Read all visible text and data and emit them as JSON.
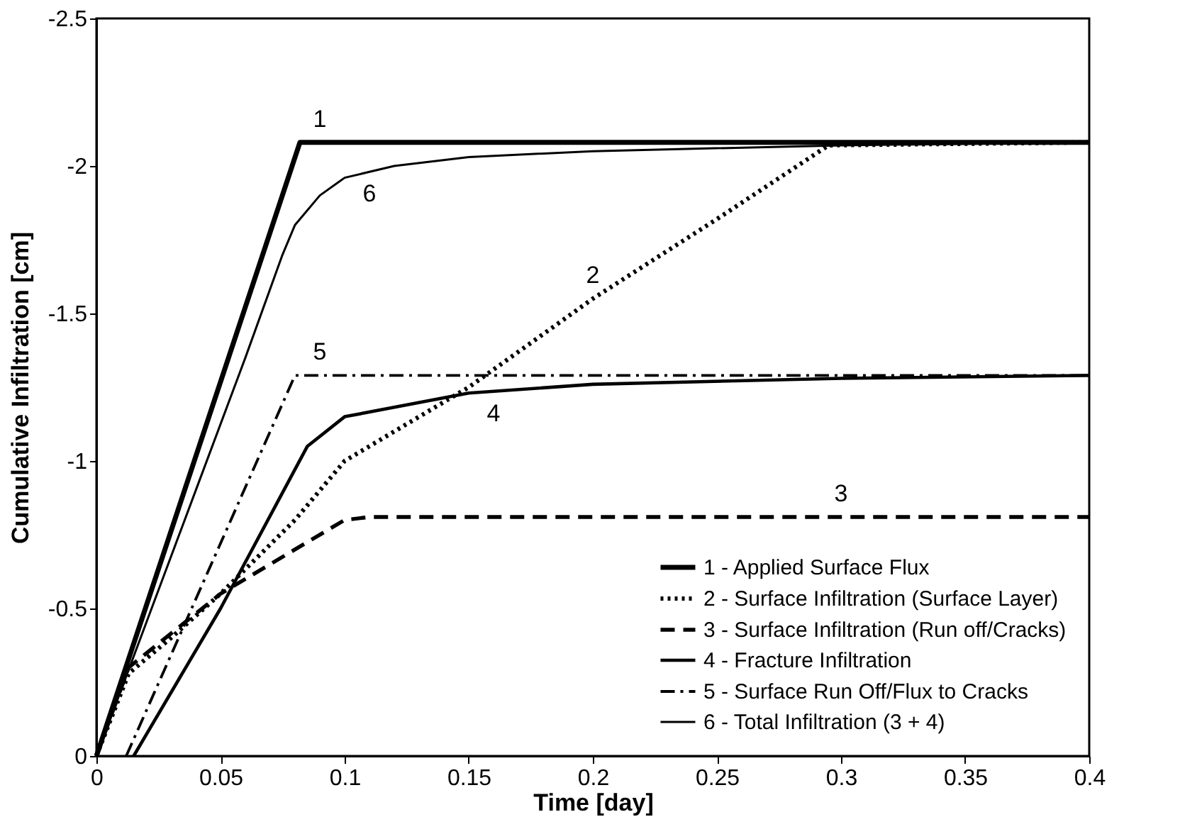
{
  "chart_data": {
    "type": "line",
    "xlabel": "Time [day]",
    "ylabel": "Cumulative Infiltration [cm]",
    "xlim": [
      0,
      0.4
    ],
    "xticks": [
      0,
      0.05,
      0.1,
      0.15,
      0.2,
      0.25,
      0.3,
      0.35,
      0.4
    ],
    "ylim": [
      0,
      -2.5
    ],
    "yticks": [
      0,
      -0.5,
      -1,
      -1.5,
      -2,
      -2.5
    ],
    "grid": false,
    "legend": "bottom right",
    "marker": "none",
    "series": [
      {
        "name": "1 - Applied Surface Flux",
        "color": "#000000",
        "line_style": "solid",
        "x": [
          0,
          0.082,
          0.4
        ],
        "values": [
          0,
          -2.08,
          -2.08
        ]
      },
      {
        "name": "2 - Surface Infiltration (Surface Layer)",
        "color": "#000000",
        "line_style": "dotted",
        "x": [
          0,
          0.013,
          0.03,
          0.05,
          0.08,
          0.1,
          0.15,
          0.2,
          0.25,
          0.295,
          0.4
        ],
        "values": [
          0,
          -0.28,
          -0.4,
          -0.55,
          -0.8,
          -1.0,
          -1.25,
          -1.55,
          -1.82,
          -2.07,
          -2.08
        ]
      },
      {
        "name": "3 - Surface Infiltration (Run off/Cracks)",
        "color": "#000000",
        "line_style": "dashed",
        "x": [
          0,
          0.013,
          0.05,
          0.1,
          0.11,
          0.4
        ],
        "values": [
          0,
          -0.3,
          -0.55,
          -0.8,
          -0.81,
          -0.81
        ]
      },
      {
        "name": "4 - Fracture Infiltration",
        "color": "#000000",
        "line_style": "solid",
        "x": [
          0.015,
          0.05,
          0.085,
          0.1,
          0.15,
          0.2,
          0.3,
          0.4
        ],
        "values": [
          0,
          -0.5,
          -1.05,
          -1.15,
          -1.23,
          -1.26,
          -1.28,
          -1.29
        ]
      },
      {
        "name": "5 - Surface Run Off/Flux to Cracks",
        "color": "#000000",
        "line_style": "dashdot",
        "x": [
          0.012,
          0.08,
          0.4
        ],
        "values": [
          0,
          -1.29,
          -1.29
        ]
      },
      {
        "name": "6 - Total Infiltration (3 + 4)",
        "color": "#000000",
        "line_style": "solid",
        "x": [
          0,
          0.02,
          0.04,
          0.06,
          0.075,
          0.08,
          0.09,
          0.1,
          0.12,
          0.15,
          0.2,
          0.3,
          0.4
        ],
        "values": [
          0,
          -0.45,
          -0.9,
          -1.35,
          -1.7,
          -1.8,
          -1.9,
          -1.96,
          -2.0,
          -2.03,
          -2.05,
          -2.07,
          -2.08
        ]
      }
    ],
    "annotations": [
      {
        "text": "1",
        "x": 0.09,
        "y": -2.08
      },
      {
        "text": "6",
        "x": 0.11,
        "y": -1.98
      },
      {
        "text": "2",
        "x": 0.2,
        "y": -1.55
      },
      {
        "text": "5",
        "x": 0.09,
        "y": -1.29
      },
      {
        "text": "4",
        "x": 0.16,
        "y": -1.235
      },
      {
        "text": "3",
        "x": 0.3,
        "y": -0.81
      }
    ]
  }
}
